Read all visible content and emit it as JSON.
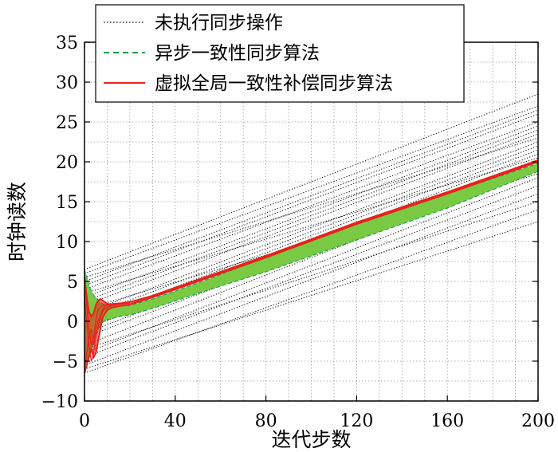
{
  "chart_data": {
    "type": "line",
    "title": "",
    "xlabel": "迭代步数",
    "ylabel": "时钟读数",
    "xlim": [
      0,
      200
    ],
    "ylim": [
      -10,
      35
    ],
    "xticks": [
      "0",
      "40",
      "80",
      "120",
      "160",
      "200"
    ],
    "yticks": [
      "−10",
      "−5",
      "0",
      "5",
      "10",
      "15",
      "20",
      "25",
      "30",
      "35"
    ],
    "grid": true,
    "legend_position": "top-center",
    "series": [
      {
        "name": "未执行同步操作",
        "style": "dotted",
        "color": "#000000",
        "lines": [
          {
            "x": [
              0,
              200
            ],
            "y": [
              -6.5,
              14.0
            ]
          },
          {
            "x": [
              0,
              200
            ],
            "y": [
              -5.5,
              16.0
            ]
          },
          {
            "x": [
              0,
              200
            ],
            "y": [
              -4.5,
              17.0
            ]
          },
          {
            "x": [
              0,
              200
            ],
            "y": [
              -4.0,
              18.0
            ]
          },
          {
            "x": [
              0,
              200
            ],
            "y": [
              -3.0,
              19.0
            ]
          },
          {
            "x": [
              0,
              200
            ],
            "y": [
              -2.0,
              19.5
            ]
          },
          {
            "x": [
              0,
              200
            ],
            "y": [
              -1.5,
              20.0
            ]
          },
          {
            "x": [
              0,
              200
            ],
            "y": [
              -1.0,
              21.0
            ]
          },
          {
            "x": [
              0,
              200
            ],
            "y": [
              0.0,
              21.5
            ]
          },
          {
            "x": [
              0,
              200
            ],
            "y": [
              0.5,
              22.0
            ]
          },
          {
            "x": [
              0,
              200
            ],
            "y": [
              1.0,
              22.5
            ]
          },
          {
            "x": [
              0,
              200
            ],
            "y": [
              2.0,
              23.5
            ]
          },
          {
            "x": [
              0,
              200
            ],
            "y": [
              2.5,
              24.0
            ]
          },
          {
            "x": [
              0,
              200
            ],
            "y": [
              3.0,
              24.5
            ]
          },
          {
            "x": [
              0,
              200
            ],
            "y": [
              4.0,
              25.0
            ]
          },
          {
            "x": [
              0,
              200
            ],
            "y": [
              4.5,
              26.0
            ]
          },
          {
            "x": [
              0,
              200
            ],
            "y": [
              5.0,
              26.5
            ]
          },
          {
            "x": [
              0,
              200
            ],
            "y": [
              6.0,
              27.0
            ]
          },
          {
            "x": [
              0,
              200
            ],
            "y": [
              6.5,
              28.5
            ]
          },
          {
            "x": [
              0,
              200
            ],
            "y": [
              -6.0,
              12.5
            ]
          },
          {
            "x": [
              0,
              200
            ],
            "y": [
              -3.5,
              15.0
            ]
          },
          {
            "x": [
              0,
              200
            ],
            "y": [
              1.5,
              18.5
            ]
          },
          {
            "x": [
              0,
              200
            ],
            "y": [
              3.5,
              20.5
            ]
          },
          {
            "x": [
              0,
              200
            ],
            "y": [
              5.5,
              23.0
            ]
          }
        ]
      },
      {
        "name": "异步一致性同步算法",
        "style": "dashed",
        "color": "#0aa04a",
        "band_color": "#7ac943",
        "x": [
          0,
          1,
          2,
          3,
          4,
          5,
          6,
          7,
          8,
          10,
          13,
          16,
          20,
          30,
          50,
          80,
          120,
          160,
          200
        ],
        "y_upper": [
          6.5,
          5.5,
          4.5,
          3.8,
          3.3,
          3.0,
          2.7,
          2.4,
          2.2,
          2.0,
          1.9,
          1.9,
          2.0,
          2.8,
          4.8,
          8.0,
          12.3,
          16.0,
          19.8
        ],
        "y_lower": [
          -5.5,
          -5.0,
          -4.2,
          -3.4,
          -2.5,
          -1.7,
          -1.0,
          -0.5,
          -0.1,
          0.2,
          0.4,
          0.6,
          0.8,
          1.6,
          3.5,
          6.2,
          10.2,
          14.2,
          18.8
        ]
      },
      {
        "name": "虚拟全局一致性补偿同步算法",
        "style": "solid",
        "color": "#e8201c",
        "x": [
          0,
          1,
          2,
          3,
          4,
          5,
          6,
          7,
          8,
          10,
          12,
          15,
          20,
          30,
          50,
          80,
          120,
          160,
          200
        ],
        "y_upper": [
          5.5,
          3.0,
          1.2,
          0.6,
          1.0,
          2.0,
          2.6,
          2.8,
          2.6,
          2.2,
          2.1,
          2.2,
          2.4,
          3.2,
          5.2,
          8.2,
          12.4,
          16.2,
          20.2
        ],
        "y_lower": [
          -6.5,
          -5.5,
          -4.5,
          -3.5,
          -4.5,
          -4.0,
          -2.5,
          -1.0,
          0.5,
          1.4,
          1.7,
          1.9,
          2.1,
          3.0,
          5.0,
          8.0,
          12.2,
          16.0,
          20.0
        ]
      }
    ]
  }
}
